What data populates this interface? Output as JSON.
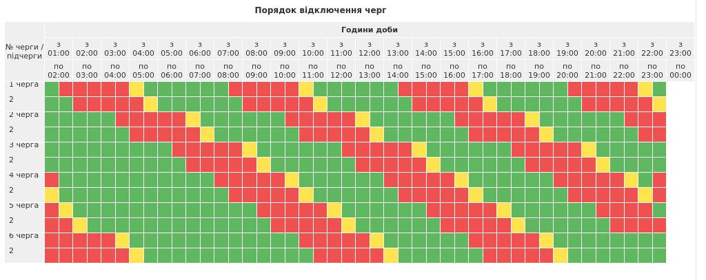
{
  "page": {
    "title": "Порядок відключення черг"
  },
  "table": {
    "corner_label": "№ черги / підчерги",
    "hours_header": "Години доби",
    "from_prefix": "з",
    "to_prefix": "по",
    "from_times": [
      "01:00",
      "02:00",
      "03:00",
      "04:00",
      "05:00",
      "06:00",
      "07:00",
      "08:00",
      "09:00",
      "10:00",
      "11:00",
      "12:00",
      "13:00",
      "14:00",
      "15:00",
      "16:00",
      "17:00",
      "18:00",
      "19:00",
      "20:00",
      "21:00",
      "22:00",
      "23:00"
    ],
    "to_times": [
      "02:00",
      "03:00",
      "04:00",
      "05:00",
      "06:00",
      "07:00",
      "08:00",
      "09:00",
      "10:00",
      "11:00",
      "12:00",
      "13:00",
      "14:00",
      "15:00",
      "16:00",
      "17:00",
      "18:00",
      "19:00",
      "20:00",
      "21:00",
      "22:00",
      "23:00",
      "00:00"
    ],
    "queues": [
      {
        "label": "1 черга",
        "sub": "2"
      },
      {
        "label": "2 черга",
        "sub": "2"
      },
      {
        "label": "3 черга",
        "sub": "2"
      },
      {
        "label": "4 черга",
        "sub": "2"
      },
      {
        "label": "5 черга",
        "sub": "2"
      },
      {
        "label": "6 черга",
        "sub": "2"
      }
    ],
    "legend_colors": {
      "R": "#ef5150",
      "G": "#5fb85f",
      "Y": "#ffe44f"
    },
    "grid": [
      "GRRRRRYGGGGGGRRRRRYGGGGGGRRRRRYGGGGGGRRRRRYG",
      "GGRRRRRYGGGGGGRRRRRYGGGGGGRRRRRYGGGGGGRRRRRY",
      "GGGGGRRRRRYGGGGGGRRRRRYGGGGGGRRRRRYGGGGGGRRR",
      "GGGGGGRRRRRYGGGGGGRRRRRYGGGGGGRRRRRYGGGGGGRR",
      "GGGGGGGGGRRRRRYGGGGGGRRRRRYGGGGGGRRRRRYGGGGG",
      "GGGGGGGGGGRRRRRYGGGGGGRRRRRYGGGGGGRRRRRYGGGG",
      "RGGGGGGGGGGGRRRRRYGGGGGGRRRRRYGGGGGGRRRRRYGR",
      "YGGGGGGGGGGGGRRRRRYGGGGGGRRRRRYGGGGGGRRRRRYR",
      "RYGGGGGGGGGGGGGRRRRRYGGGGGGRRRRRYGGGGGGRRRRG",
      "RRYGGGGGGGGGGGGGRRRRRYGGGGGGRRRRRYGGGGGGRRRR",
      "RRRRRYGGGGGGGGGGGGRRRRRYGGGGGGRRRRRYGGGGGGGG",
      "RRRRRRYGGGGGGGGGGGGRRRRRYGGGGGGRRRRRYGGGGGGG"
    ]
  }
}
